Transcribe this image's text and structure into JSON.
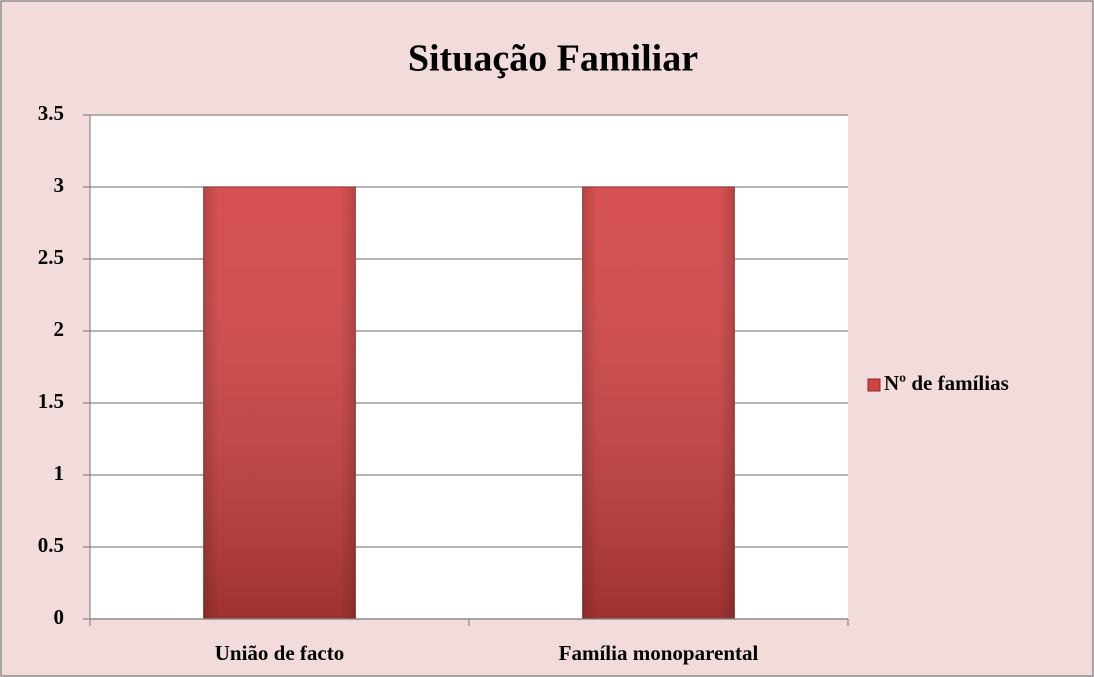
{
  "chart_data": {
    "type": "bar",
    "title": "Situação Familiar",
    "categories": [
      "União de facto",
      "Família monoparental"
    ],
    "series": [
      {
        "name": "Nº de famílias",
        "color": "#d34242",
        "values": [
          3,
          3
        ]
      }
    ],
    "ylim": [
      0,
      3.5
    ],
    "yticks": [
      0,
      0.5,
      1,
      1.5,
      2,
      2.5,
      3,
      3.5
    ],
    "grid": true,
    "legend": "right"
  }
}
